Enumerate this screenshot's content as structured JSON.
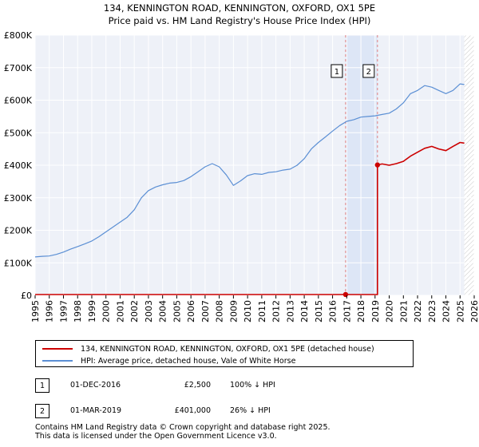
{
  "chart_data": {
    "type": "line",
    "title": "134, KENNINGTON ROAD, KENNINGTON, OXFORD, OX1 5PE",
    "subtitle": "Price paid vs. HM Land Registry's House Price Index (HPI)",
    "xlim": [
      1995,
      2026
    ],
    "ylim": [
      0,
      800000
    ],
    "x_ticks": [
      "1995",
      "1996",
      "1997",
      "1998",
      "1999",
      "2000",
      "2001",
      "2002",
      "2003",
      "2004",
      "2005",
      "2006",
      "2007",
      "2008",
      "2009",
      "2010",
      "2011",
      "2012",
      "2013",
      "2014",
      "2015",
      "2016",
      "2017",
      "2018",
      "2019",
      "2020",
      "2021",
      "2022",
      "2023",
      "2024",
      "2025",
      "2026"
    ],
    "y_ticks": [
      {
        "value": 0,
        "label": "£0"
      },
      {
        "value": 100000,
        "label": "£100K"
      },
      {
        "value": 200000,
        "label": "£200K"
      },
      {
        "value": 300000,
        "label": "£300K"
      },
      {
        "value": 400000,
        "label": "£400K"
      },
      {
        "value": 500000,
        "label": "£500K"
      },
      {
        "value": 600000,
        "label": "£600K"
      },
      {
        "value": 700000,
        "label": "£700K"
      },
      {
        "value": 800000,
        "label": "£800K"
      }
    ],
    "grid": true,
    "shaded_span": [
      2016.92,
      2019.17
    ],
    "future_hatch_from": 2025.3,
    "series": [
      {
        "name": "HPI: Average price, detached house, Vale of White Horse",
        "color": "#5b8fd4",
        "x": [
          1995.0,
          1995.5,
          1996.0,
          1996.5,
          1997.0,
          1997.5,
          1998.0,
          1998.5,
          1999.0,
          1999.5,
          2000.0,
          2000.5,
          2001.0,
          2001.5,
          2002.0,
          2002.5,
          2003.0,
          2003.5,
          2004.0,
          2004.5,
          2005.0,
          2005.5,
          2006.0,
          2006.5,
          2007.0,
          2007.5,
          2008.0,
          2008.5,
          2009.0,
          2009.5,
          2010.0,
          2010.5,
          2011.0,
          2011.5,
          2012.0,
          2012.5,
          2013.0,
          2013.5,
          2014.0,
          2014.5,
          2015.0,
          2015.5,
          2016.0,
          2016.5,
          2017.0,
          2017.5,
          2018.0,
          2018.5,
          2019.0,
          2019.5,
          2020.0,
          2020.5,
          2021.0,
          2021.5,
          2022.0,
          2022.5,
          2023.0,
          2023.5,
          2024.0,
          2024.5,
          2025.0,
          2025.3
        ],
        "values": [
          118000,
          120000,
          121000,
          126000,
          133000,
          142000,
          150000,
          158000,
          167000,
          180000,
          195000,
          210000,
          225000,
          240000,
          263000,
          300000,
          322000,
          333000,
          340000,
          345000,
          347000,
          353000,
          365000,
          380000,
          395000,
          405000,
          395000,
          370000,
          338000,
          352000,
          368000,
          374000,
          372000,
          378000,
          380000,
          385000,
          388000,
          400000,
          420000,
          450000,
          470000,
          487000,
          505000,
          522000,
          535000,
          540000,
          548000,
          550000,
          552000,
          556000,
          560000,
          573000,
          592000,
          620000,
          630000,
          645000,
          640000,
          630000,
          620000,
          630000,
          650000,
          648000
        ]
      },
      {
        "name": "134, KENNINGTON ROAD, KENNINGTON, OXFORD, OX1 5PE (detached house)",
        "color": "#cc0000",
        "x": [
          1995.0,
          2016.92,
          2016.92,
          2019.17,
          2019.17,
          2019.5,
          2020.0,
          2020.5,
          2021.0,
          2021.5,
          2022.0,
          2022.5,
          2023.0,
          2023.5,
          2024.0,
          2024.5,
          2025.0,
          2025.3
        ],
        "values": [
          2500,
          2500,
          2500,
          2500,
          401000,
          404000,
          400000,
          405000,
          412000,
          428000,
          440000,
          452000,
          458000,
          450000,
          445000,
          458000,
          470000,
          468000
        ]
      }
    ],
    "sale_markers": [
      {
        "label": "1",
        "x": 2016.92,
        "value": 2500
      },
      {
        "label": "2",
        "x": 2019.17,
        "value": 401000
      }
    ]
  },
  "legend": {
    "property_label": "134, KENNINGTON ROAD, KENNINGTON, OXFORD, OX1 5PE (detached house)",
    "hpi_label": "HPI: Average price, detached house, Vale of White Horse"
  },
  "sales": [
    {
      "num": "1",
      "date": "01-DEC-2016",
      "price": "£2,500",
      "hpi": "100% ↓ HPI"
    },
    {
      "num": "2",
      "date": "01-MAR-2019",
      "price": "£401,000",
      "hpi": "26% ↓ HPI"
    }
  ],
  "footer": {
    "line1": "Contains HM Land Registry data © Crown copyright and database right 2025.",
    "line2": "This data is licensed under the Open Government Licence v3.0."
  }
}
